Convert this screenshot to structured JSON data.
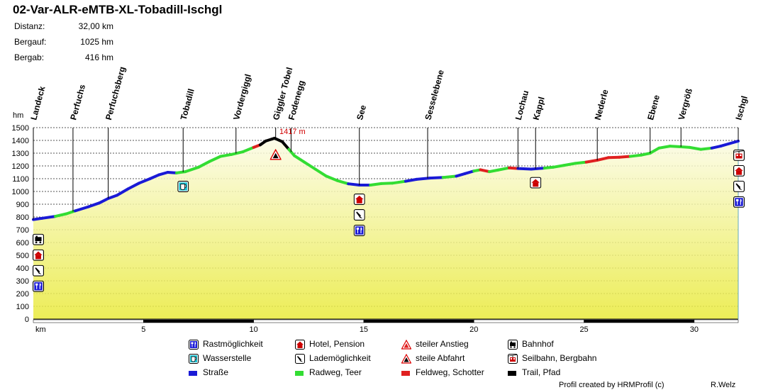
{
  "title": "02-Var-ALR-eMTB-XL-Tobadill-Ischgl",
  "stats": [
    {
      "label": "Distanz:",
      "value": "32,00 km"
    },
    {
      "label": "Bergauf:",
      "value": "1025 hm"
    },
    {
      "label": "Bergab:",
      "value": "416 hm"
    }
  ],
  "chart_data": {
    "type": "area",
    "title": "02-Var-ALR-eMTB-XL-Tobadill-Ischgl",
    "xlabel": "km",
    "ylabel": "hm",
    "xlim": [
      0,
      32
    ],
    "ylim": [
      0,
      1500
    ],
    "xticks": [
      5,
      10,
      15,
      20,
      25,
      30
    ],
    "yticks": [
      0,
      100,
      200,
      300,
      400,
      500,
      600,
      700,
      800,
      900,
      1000,
      1100,
      1200,
      1300,
      1400,
      1500
    ],
    "grid": true,
    "max_label": "1417 m",
    "max_point": {
      "x": 10.95,
      "y": 1417
    },
    "profile": [
      {
        "x": 0.0,
        "y": 780,
        "s": "road"
      },
      {
        "x": 0.4,
        "y": 790,
        "s": "road"
      },
      {
        "x": 1.0,
        "y": 805,
        "s": "road"
      },
      {
        "x": 1.5,
        "y": 825,
        "s": "bike"
      },
      {
        "x": 1.9,
        "y": 848,
        "s": "bike"
      },
      {
        "x": 2.5,
        "y": 880,
        "s": "road"
      },
      {
        "x": 3.0,
        "y": 910,
        "s": "road"
      },
      {
        "x": 3.4,
        "y": 945,
        "s": "road"
      },
      {
        "x": 3.8,
        "y": 970,
        "s": "road"
      },
      {
        "x": 4.3,
        "y": 1020,
        "s": "road"
      },
      {
        "x": 4.8,
        "y": 1065,
        "s": "road"
      },
      {
        "x": 5.3,
        "y": 1100,
        "s": "road"
      },
      {
        "x": 5.7,
        "y": 1130,
        "s": "road"
      },
      {
        "x": 6.1,
        "y": 1150,
        "s": "road"
      },
      {
        "x": 6.5,
        "y": 1145,
        "s": "road"
      },
      {
        "x": 6.9,
        "y": 1155,
        "s": "bike"
      },
      {
        "x": 7.5,
        "y": 1190,
        "s": "bike"
      },
      {
        "x": 8.0,
        "y": 1235,
        "s": "bike"
      },
      {
        "x": 8.5,
        "y": 1275,
        "s": "bike"
      },
      {
        "x": 9.0,
        "y": 1290,
        "s": "bike"
      },
      {
        "x": 9.5,
        "y": 1310,
        "s": "bike"
      },
      {
        "x": 10.0,
        "y": 1345,
        "s": "bike"
      },
      {
        "x": 10.3,
        "y": 1365,
        "s": "gravel"
      },
      {
        "x": 10.55,
        "y": 1395,
        "s": "trail"
      },
      {
        "x": 10.95,
        "y": 1417,
        "s": "trail"
      },
      {
        "x": 11.3,
        "y": 1390,
        "s": "trail"
      },
      {
        "x": 11.6,
        "y": 1330,
        "s": "trail"
      },
      {
        "x": 11.85,
        "y": 1280,
        "s": "bike"
      },
      {
        "x": 12.3,
        "y": 1230,
        "s": "bike"
      },
      {
        "x": 12.8,
        "y": 1175,
        "s": "bike"
      },
      {
        "x": 13.3,
        "y": 1120,
        "s": "bike"
      },
      {
        "x": 13.8,
        "y": 1085,
        "s": "bike"
      },
      {
        "x": 14.3,
        "y": 1060,
        "s": "bike"
      },
      {
        "x": 14.8,
        "y": 1050,
        "s": "road"
      },
      {
        "x": 15.3,
        "y": 1050,
        "s": "road"
      },
      {
        "x": 15.8,
        "y": 1062,
        "s": "bike"
      },
      {
        "x": 16.3,
        "y": 1065,
        "s": "bike"
      },
      {
        "x": 16.9,
        "y": 1080,
        "s": "bike"
      },
      {
        "x": 17.4,
        "y": 1095,
        "s": "road"
      },
      {
        "x": 18.0,
        "y": 1105,
        "s": "road"
      },
      {
        "x": 18.6,
        "y": 1110,
        "s": "road"
      },
      {
        "x": 19.2,
        "y": 1120,
        "s": "bike"
      },
      {
        "x": 19.6,
        "y": 1140,
        "s": "road"
      },
      {
        "x": 20.0,
        "y": 1160,
        "s": "road"
      },
      {
        "x": 20.3,
        "y": 1170,
        "s": "bike"
      },
      {
        "x": 20.7,
        "y": 1155,
        "s": "gravel"
      },
      {
        "x": 21.1,
        "y": 1168,
        "s": "bike"
      },
      {
        "x": 21.6,
        "y": 1185,
        "s": "bike"
      },
      {
        "x": 22.0,
        "y": 1180,
        "s": "gravel"
      },
      {
        "x": 22.6,
        "y": 1175,
        "s": "road"
      },
      {
        "x": 23.2,
        "y": 1183,
        "s": "road"
      },
      {
        "x": 23.6,
        "y": 1190,
        "s": "bike"
      },
      {
        "x": 24.1,
        "y": 1205,
        "s": "bike"
      },
      {
        "x": 24.6,
        "y": 1220,
        "s": "bike"
      },
      {
        "x": 25.1,
        "y": 1230,
        "s": "bike"
      },
      {
        "x": 25.6,
        "y": 1245,
        "s": "gravel"
      },
      {
        "x": 26.1,
        "y": 1265,
        "s": "gravel"
      },
      {
        "x": 26.6,
        "y": 1268,
        "s": "gravel"
      },
      {
        "x": 27.1,
        "y": 1275,
        "s": "gravel"
      },
      {
        "x": 27.6,
        "y": 1285,
        "s": "bike"
      },
      {
        "x": 28.0,
        "y": 1300,
        "s": "bike"
      },
      {
        "x": 28.4,
        "y": 1340,
        "s": "bike"
      },
      {
        "x": 28.9,
        "y": 1355,
        "s": "bike"
      },
      {
        "x": 29.4,
        "y": 1350,
        "s": "bike"
      },
      {
        "x": 29.8,
        "y": 1345,
        "s": "bike"
      },
      {
        "x": 30.3,
        "y": 1330,
        "s": "bike"
      },
      {
        "x": 30.8,
        "y": 1340,
        "s": "bike"
      },
      {
        "x": 31.2,
        "y": 1355,
        "s": "road"
      },
      {
        "x": 31.6,
        "y": 1375,
        "s": "road"
      },
      {
        "x": 32.0,
        "y": 1395,
        "s": "road"
      }
    ],
    "waypoints": [
      {
        "name": "Landeck",
        "km": 0.0
      },
      {
        "name": "Perfuchs",
        "km": 1.8
      },
      {
        "name": "Perfuchsberg",
        "km": 3.4
      },
      {
        "name": "Tobadill",
        "km": 6.8
      },
      {
        "name": "Vordergiggl",
        "km": 9.2
      },
      {
        "name": "Giggler Tobel",
        "km": 11.0
      },
      {
        "name": "Fodenegg",
        "km": 11.7
      },
      {
        "name": "See",
        "km": 14.8
      },
      {
        "name": "Sesselebene",
        "km": 17.9
      },
      {
        "name": "Lochau",
        "km": 22.0
      },
      {
        "name": "Kappl",
        "km": 22.8
      },
      {
        "name": "Nederle",
        "km": 25.6
      },
      {
        "name": "Ebene",
        "km": 28.0
      },
      {
        "name": "Vergröß",
        "km": 29.4
      },
      {
        "name": "Ischgl",
        "km": 32.0
      }
    ],
    "markers": [
      {
        "km": 0.0,
        "y": 735,
        "icon": "train"
      },
      {
        "km": 0.0,
        "y": 735,
        "icon": "hotel"
      },
      {
        "km": 0.0,
        "y": 735,
        "icon": "charging"
      },
      {
        "km": 0.0,
        "y": 735,
        "icon": "rest"
      },
      {
        "km": 6.8,
        "y": 1150,
        "icon": "water"
      },
      {
        "km": 11.0,
        "y": 1400,
        "icon": "steep-descent"
      },
      {
        "km": 14.8,
        "y": 1050,
        "icon": "hotel"
      },
      {
        "km": 14.8,
        "y": 1050,
        "icon": "charging"
      },
      {
        "km": 14.8,
        "y": 1050,
        "icon": "rest"
      },
      {
        "km": 22.8,
        "y": 1180,
        "icon": "hotel"
      },
      {
        "km": 32.0,
        "y": 1395,
        "icon": "cable-car"
      },
      {
        "km": 32.0,
        "y": 1395,
        "icon": "hotel"
      },
      {
        "km": 32.0,
        "y": 1395,
        "icon": "charging"
      },
      {
        "km": 32.0,
        "y": 1395,
        "icon": "rest"
      }
    ]
  },
  "legend": [
    {
      "icon": "rest",
      "label": "Rastmöglichkeit"
    },
    {
      "icon": "hotel",
      "label": "Hotel, Pension"
    },
    {
      "icon": "steep-ascent",
      "label": "steiler Anstieg"
    },
    {
      "icon": "train",
      "label": "Bahnhof"
    },
    {
      "icon": "water",
      "label": "Wasserstelle"
    },
    {
      "icon": "charging",
      "label": "Lademöglichkeit"
    },
    {
      "icon": "steep-descent",
      "label": "steile Abfahrt"
    },
    {
      "icon": "cable-car",
      "label": "Seilbahn, Bergbahn"
    },
    {
      "icon": "surface-road",
      "label": "Straße"
    },
    {
      "icon": "surface-bike",
      "label": "Radweg, Teer"
    },
    {
      "icon": "surface-gravel",
      "label": "Feldweg, Schotter"
    },
    {
      "icon": "surface-trail",
      "label": "Trail, Pfad"
    }
  ],
  "surface_colors": {
    "road": "#1a1ad6",
    "bike": "#33dd33",
    "gravel": "#e02020",
    "trail": "#000000"
  },
  "footer": {
    "credit": "Profil created by HRMProfil (c)",
    "author": "R.Welz"
  }
}
